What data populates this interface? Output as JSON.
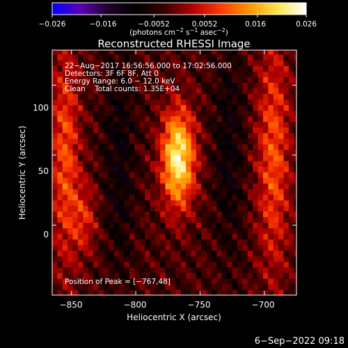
{
  "colorbar": {
    "ticks": [
      "−0.026",
      "−0.016",
      "−0.0052",
      "0.0052",
      "0.016",
      "0.026"
    ],
    "units_prefix": "(photons cm",
    "units_exp1": "−2",
    "units_mid": " s",
    "units_exp2": "−1",
    "units_mid2": " asec",
    "units_exp3": "−2",
    "units_suffix": ")",
    "colors": [
      "#0000ff",
      "#5a00b4",
      "#1e0028",
      "#000000",
      "#3c0000",
      "#b40000",
      "#ff3c00",
      "#ff9600",
      "#ffe650",
      "#ffffff"
    ]
  },
  "title": "Reconstructed RHESSI Image",
  "annotations": {
    "time": "22−Aug−2017 16:56:56.000 to 17:02:56.000",
    "detectors": "Detectors: 3F 6F 8F, Att 0",
    "energy": "Energy Range: 6.0 − 12.0 keV",
    "clean": "Clean    Total counts: 1.35E+04",
    "peak": "Position of Peak = [−767,48]"
  },
  "axes": {
    "xlabel": "Heliocentric X (arcsec)",
    "ylabel": "Heliocentric Y (arcsec)",
    "xticks": [
      "−850",
      "−800",
      "−750",
      "−700"
    ],
    "yticks": [
      "100",
      "50",
      "0"
    ]
  },
  "footer": {
    "date": "6−Sep−2022 09:18"
  },
  "chart_data": {
    "type": "heatmap",
    "title": "Reconstructed RHESSI Image",
    "xlabel": "Heliocentric X (arcsec)",
    "ylabel": "Heliocentric Y (arcsec)",
    "xlim": [
      -865,
      -675
    ],
    "ylim": [
      -50,
      125
    ],
    "x_ticks": [
      -850,
      -800,
      -750,
      -700
    ],
    "y_ticks": [
      0,
      50,
      100
    ],
    "colorbar_range": [
      -0.026,
      0.026
    ],
    "colorbar_ticks": [
      -0.026,
      -0.016,
      -0.0052,
      0.0052,
      0.016,
      0.026
    ],
    "peak_position": [
      -767,
      48
    ],
    "peak_value": 0.026,
    "sources": [
      {
        "x": -767,
        "y": 48,
        "sx": 9,
        "sy": 24,
        "value": 0.026
      },
      {
        "x": -855,
        "y": 50,
        "sx": 8,
        "sy": 55,
        "value": 0.012
      },
      {
        "x": -840,
        "y": 5,
        "sx": 7,
        "sy": 18,
        "value": 0.008
      },
      {
        "x": -693,
        "y": 50,
        "sx": 9,
        "sy": 60,
        "value": 0.012
      },
      {
        "x": -813,
        "y": 50,
        "sx": 8,
        "sy": 55,
        "value": -0.006
      },
      {
        "x": -728,
        "y": 55,
        "sx": 8,
        "sy": 50,
        "value": -0.006
      }
    ]
  }
}
